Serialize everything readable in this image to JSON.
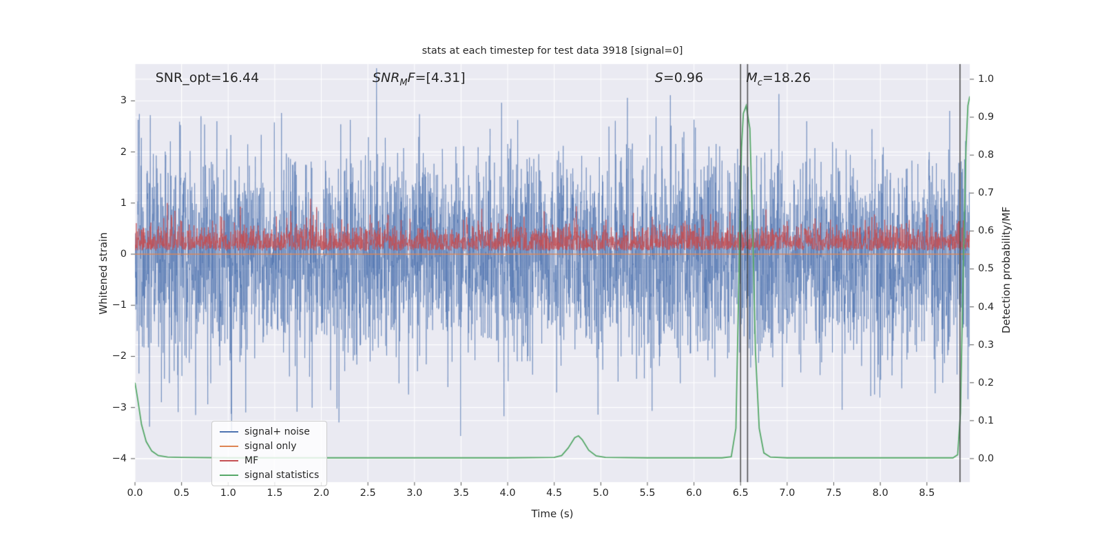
{
  "figure": {
    "background": "#ffffff",
    "axes_background": "#eaeaf2",
    "grid_color": "#ffffff",
    "tick_mark_color": "#555555",
    "text_color": "#262626"
  },
  "chart_data": {
    "type": "line",
    "title": "stats at each timestep for test data 3918 [signal=0]",
    "xlabel": "Time (s)",
    "ylabel_left": "Whitened strain",
    "ylabel_right": "Detection probability/MF",
    "xlim": [
      0.0,
      8.96
    ],
    "ylim_left": [
      -4.46,
      3.72
    ],
    "ylim_right": [
      -0.062,
      1.04
    ],
    "grid": true,
    "xticks": [
      {
        "v": 0.0,
        "label": "0.0"
      },
      {
        "v": 0.5,
        "label": "0.5"
      },
      {
        "v": 1.0,
        "label": "1.0"
      },
      {
        "v": 1.5,
        "label": "1.5"
      },
      {
        "v": 2.0,
        "label": "2.0"
      },
      {
        "v": 2.5,
        "label": "2.5"
      },
      {
        "v": 3.0,
        "label": "3.0"
      },
      {
        "v": 3.5,
        "label": "3.5"
      },
      {
        "v": 4.0,
        "label": "4.0"
      },
      {
        "v": 4.5,
        "label": "4.5"
      },
      {
        "v": 5.0,
        "label": "5.0"
      },
      {
        "v": 5.5,
        "label": "5.5"
      },
      {
        "v": 6.0,
        "label": "6.0"
      },
      {
        "v": 6.5,
        "label": "6.5"
      },
      {
        "v": 7.0,
        "label": "7.0"
      },
      {
        "v": 7.5,
        "label": "7.5"
      },
      {
        "v": 8.0,
        "label": "8.0"
      },
      {
        "v": 8.5,
        "label": "8.5"
      }
    ],
    "yticks_left": [
      {
        "v": -4,
        "label": "−4"
      },
      {
        "v": -3,
        "label": "−3"
      },
      {
        "v": -2,
        "label": "−2"
      },
      {
        "v": -1,
        "label": "−1"
      },
      {
        "v": 0,
        "label": "0"
      },
      {
        "v": 1,
        "label": "1"
      },
      {
        "v": 2,
        "label": "2"
      },
      {
        "v": 3,
        "label": "3"
      }
    ],
    "yticks_right": [
      {
        "v": 0.0,
        "label": "0.0"
      },
      {
        "v": 0.1,
        "label": "0.1"
      },
      {
        "v": 0.2,
        "label": "0.2"
      },
      {
        "v": 0.3,
        "label": "0.3"
      },
      {
        "v": 0.4,
        "label": "0.4"
      },
      {
        "v": 0.5,
        "label": "0.5"
      },
      {
        "v": 0.6,
        "label": "0.6"
      },
      {
        "v": 0.7,
        "label": "0.7"
      },
      {
        "v": 0.8,
        "label": "0.8"
      },
      {
        "v": 0.9,
        "label": "0.9"
      },
      {
        "v": 1.0,
        "label": "1.0"
      }
    ],
    "annotations": [
      {
        "name": "snr-opt",
        "pre": "SNR_opt=16.44",
        "sub": "",
        "mid": "",
        "post": "",
        "italic": false,
        "x": 0.22
      },
      {
        "name": "snr-mf",
        "pre": "SNR",
        "sub": "M",
        "mid": "F",
        "post": "=[4.31]",
        "italic": true,
        "x": 2.55
      },
      {
        "name": "s",
        "pre": "S",
        "sub": "",
        "mid": "",
        "post": "=0.96",
        "italic": true,
        "x": 5.58
      },
      {
        "name": "mc",
        "pre": "M",
        "sub": "c",
        "mid": "",
        "post": "=18.26",
        "italic": true,
        "x": 6.56
      }
    ],
    "vlines": {
      "x": [
        6.5,
        6.575,
        8.855
      ],
      "color": "#404040"
    },
    "series": [
      {
        "name": "signal+ noise",
        "color": "#4c72b0",
        "axis": "left",
        "kind": "gaussian_noise",
        "n": 4200,
        "mean": 0,
        "std": 1.0,
        "seed": 20240,
        "alpha": 0.5,
        "lw": 1.1
      },
      {
        "name": "signal only",
        "color": "#dd8452",
        "axis": "left",
        "kind": "constant",
        "value": 0,
        "alpha": 0.9,
        "lw": 1.5
      },
      {
        "name": "MF",
        "color": "#c44e52",
        "axis": "right",
        "kind": "halfnormal_noise",
        "n": 3200,
        "base": 0.548,
        "scale": 0.032,
        "clip": 0.705,
        "spike_chance": 0.02,
        "spike_add": 0.035,
        "seed": 777,
        "alpha": 0.7,
        "lw": 1.1
      },
      {
        "name": "signal statistics",
        "color": "#55a868",
        "axis": "right",
        "kind": "points",
        "alpha": 1,
        "lw": 1.8,
        "x": [
          0.0,
          0.03,
          0.07,
          0.12,
          0.18,
          0.25,
          0.35,
          0.5,
          1.0,
          2.0,
          3.0,
          4.0,
          4.5,
          4.58,
          4.65,
          4.72,
          4.76,
          4.8,
          4.87,
          4.95,
          5.05,
          5.5,
          6.0,
          6.3,
          6.4,
          6.45,
          6.48,
          6.51,
          6.53,
          6.56,
          6.6,
          6.63,
          6.66,
          6.7,
          6.75,
          6.82,
          7.0,
          7.5,
          8.0,
          8.5,
          8.78,
          8.83,
          8.86,
          8.89,
          8.92,
          8.94,
          8.96
        ],
        "y": [
          0.2,
          0.155,
          0.09,
          0.045,
          0.02,
          0.008,
          0.004,
          0.003,
          0.002,
          0.002,
          0.002,
          0.002,
          0.003,
          0.008,
          0.028,
          0.055,
          0.06,
          0.05,
          0.022,
          0.007,
          0.003,
          0.002,
          0.002,
          0.002,
          0.005,
          0.08,
          0.45,
          0.82,
          0.91,
          0.93,
          0.87,
          0.6,
          0.28,
          0.08,
          0.015,
          0.004,
          0.002,
          0.002,
          0.002,
          0.002,
          0.002,
          0.01,
          0.12,
          0.5,
          0.82,
          0.93,
          0.955
        ]
      }
    ],
    "legend": {
      "position": "lower left",
      "entries": [
        {
          "label": "signal+ noise",
          "color": "#4c72b0"
        },
        {
          "label": "signal only",
          "color": "#dd8452"
        },
        {
          "label": "MF",
          "color": "#c44e52"
        },
        {
          "label": "signal statistics",
          "color": "#55a868"
        }
      ]
    }
  }
}
